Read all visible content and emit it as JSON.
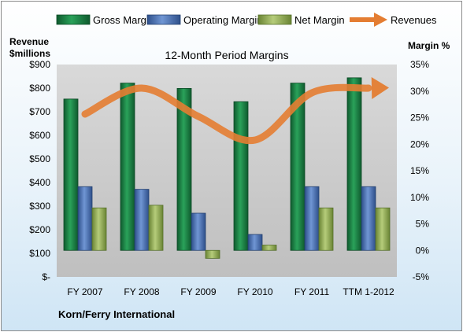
{
  "chart_data": {
    "type": "bar",
    "title": "12-Month Period Margins",
    "company": "Korn/Ferry International",
    "categories": [
      "FY 2007",
      "FY 2008",
      "FY 2009",
      "FY 2010",
      "FY 2011",
      "TTM 1-2012"
    ],
    "series": [
      {
        "name": "Gross Margin",
        "axis": "right",
        "kind": "bar",
        "color": "#1e7b45",
        "values": [
          28.5,
          31.5,
          30.5,
          28.0,
          31.5,
          32.5
        ]
      },
      {
        "name": "Operating Margin",
        "axis": "right",
        "kind": "bar",
        "color": "#4a6fb1",
        "values": [
          12.0,
          11.5,
          7.0,
          3.0,
          12.0,
          12.0
        ]
      },
      {
        "name": "Net Margin",
        "axis": "right",
        "kind": "bar",
        "color": "#8faa4f",
        "values": [
          8.0,
          8.5,
          -1.5,
          1.0,
          8.0,
          8.0
        ]
      },
      {
        "name": "Revenues",
        "axis": "left",
        "kind": "line",
        "color": "#e47d32",
        "values": [
          690,
          800,
          680,
          580,
          780,
          800
        ]
      }
    ],
    "left_axis": {
      "label_line1": "Revenue",
      "label_line2": "$millions",
      "ylim": [
        0,
        900
      ],
      "tick_labels": [
        "$-",
        "$100",
        "$200",
        "$300",
        "$400",
        "$500",
        "$600",
        "$700",
        "$800",
        "$900"
      ]
    },
    "right_axis": {
      "label": "Margin %",
      "ylim": [
        -5,
        35
      ],
      "tick_labels": [
        "-5%",
        "0%",
        "5%",
        "10%",
        "15%",
        "20%",
        "25%",
        "30%",
        "35%"
      ]
    },
    "legend_position": "top",
    "grid": false
  }
}
